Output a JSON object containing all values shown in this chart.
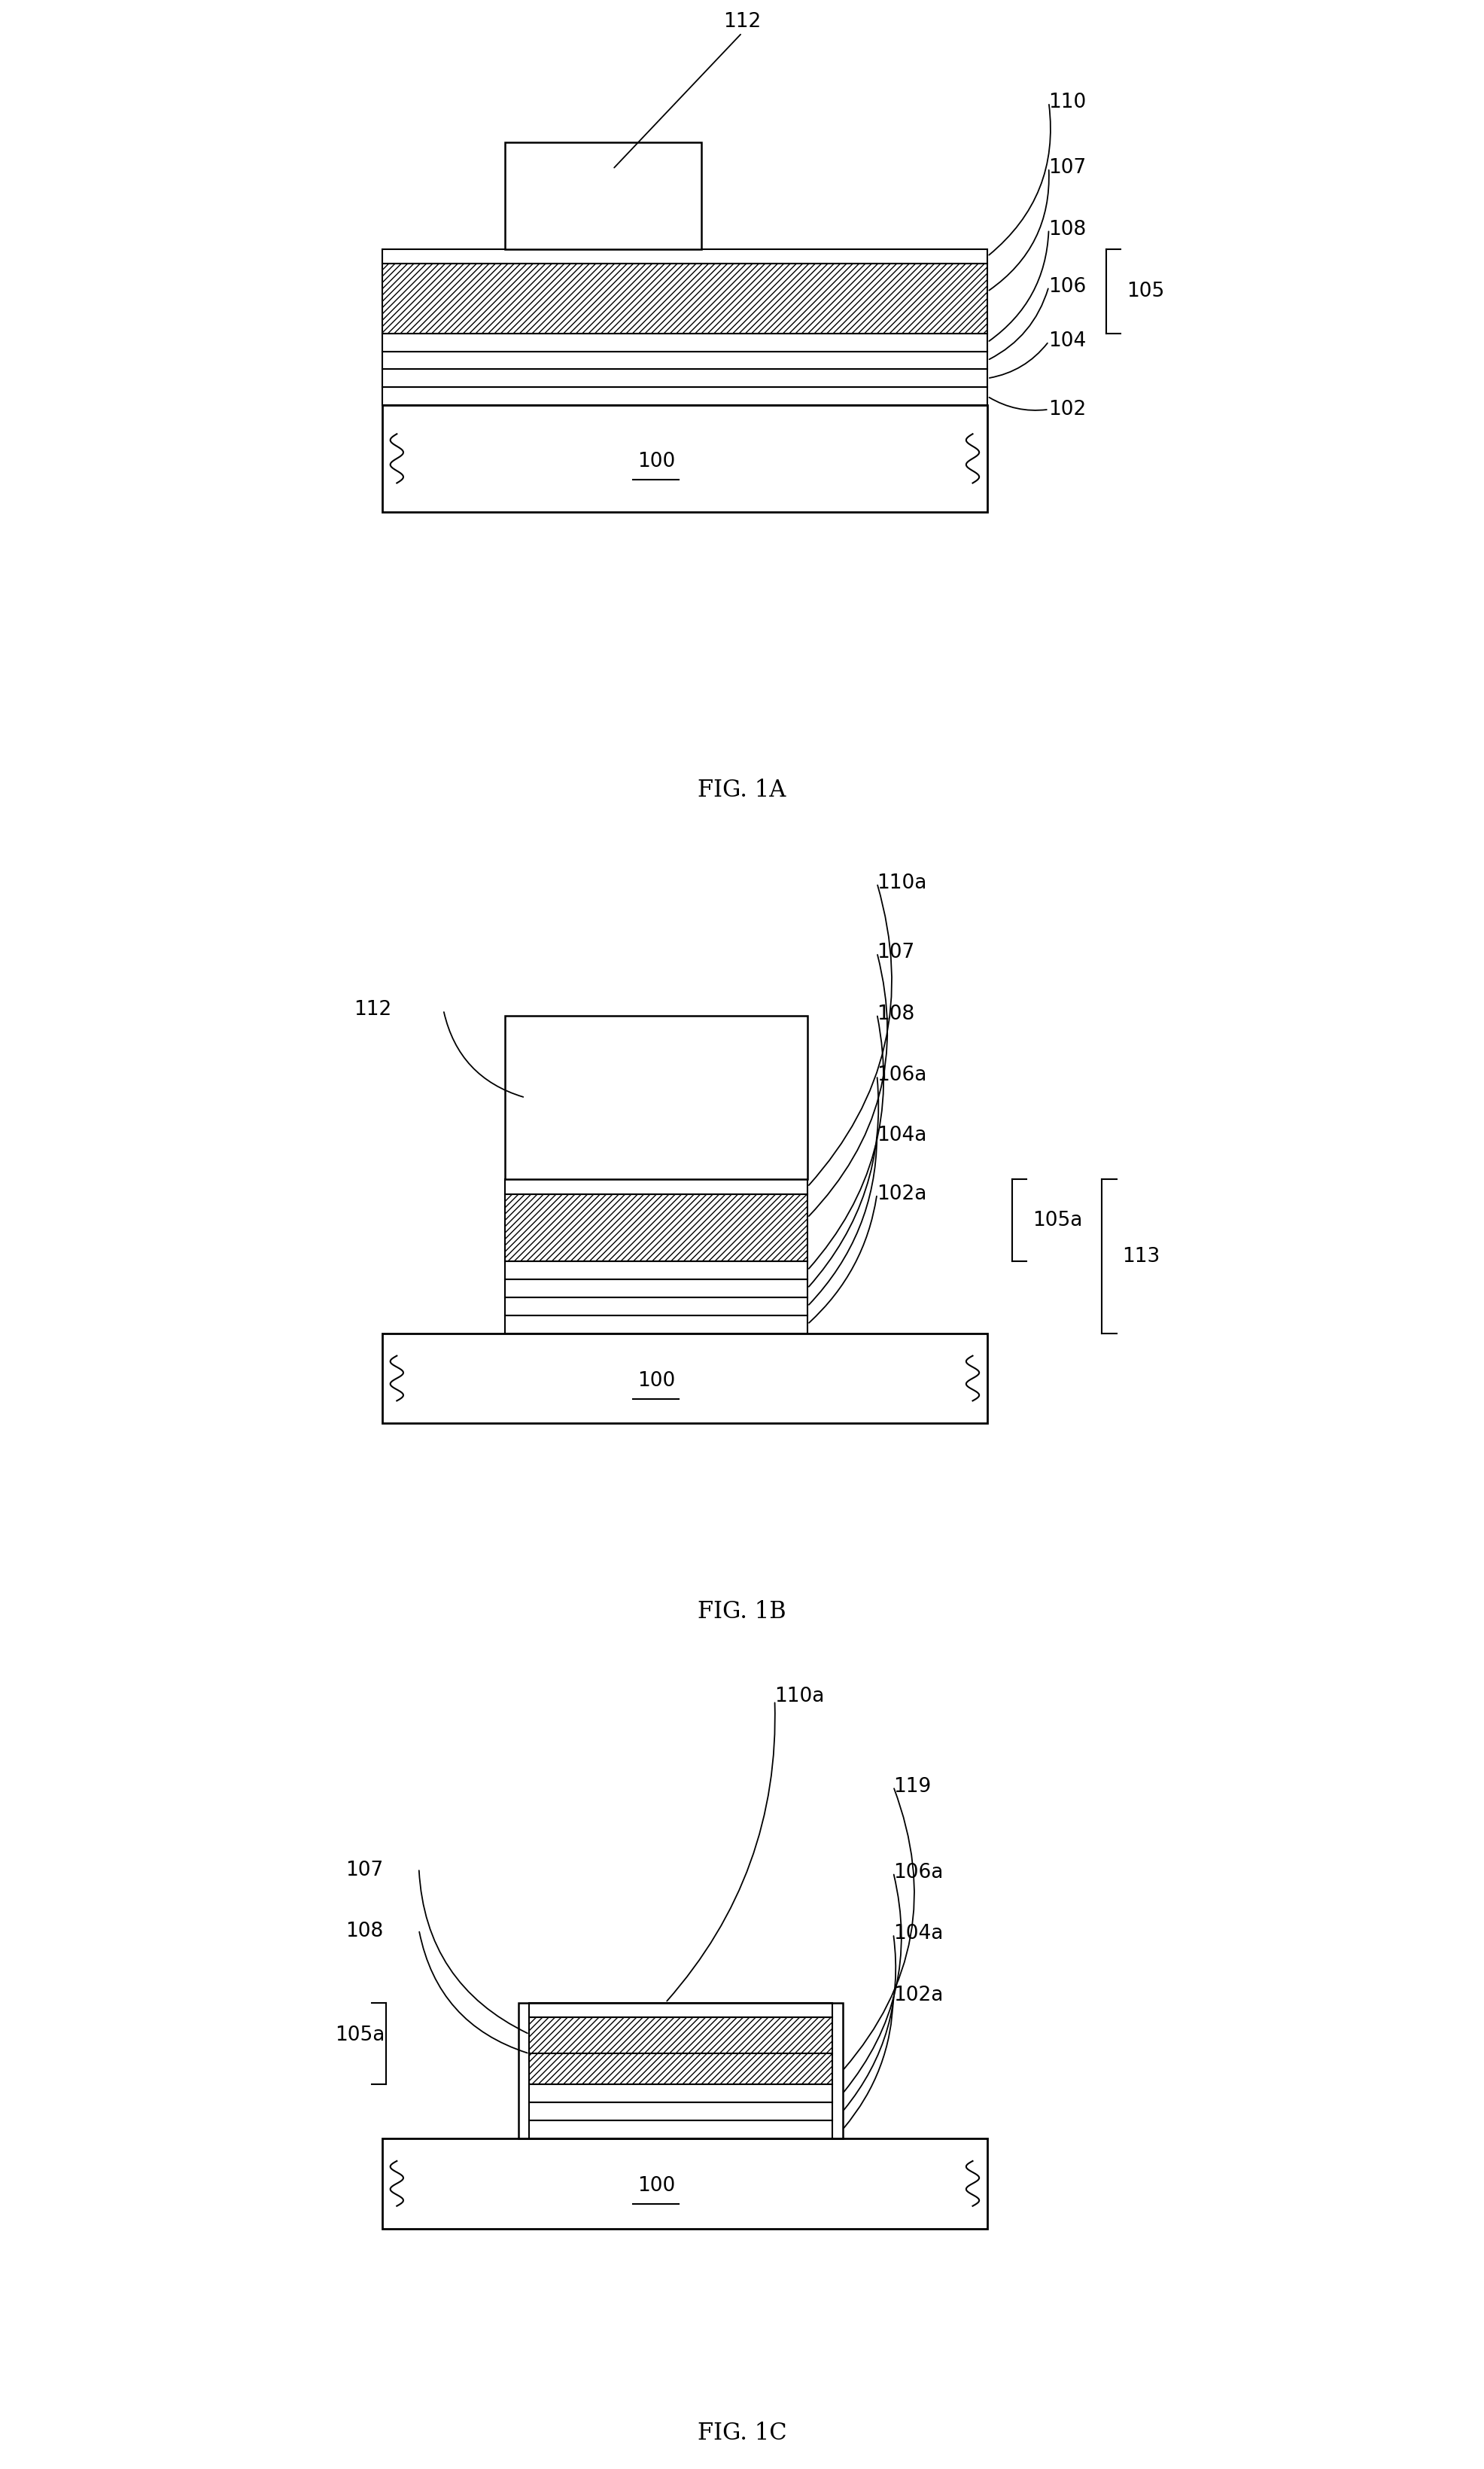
{
  "fig_width": 19.72,
  "fig_height": 32.79,
  "bg_color": "#ffffff",
  "line_color": "#000000",
  "labels": {
    "fig1a_title": "FIG. 1A",
    "fig1b_title": "FIG. 1B",
    "fig1c_title": "FIG. 1C",
    "l100": "100",
    "l102": "102",
    "l104": "104",
    "l106": "106",
    "l107": "107",
    "l108": "108",
    "l110": "110",
    "l112": "112",
    "l105": "105",
    "l102a": "102a",
    "l104a": "104a",
    "l106a": "106a",
    "l110a": "110a",
    "l105a": "105a",
    "l113": "113",
    "l119": "119"
  }
}
